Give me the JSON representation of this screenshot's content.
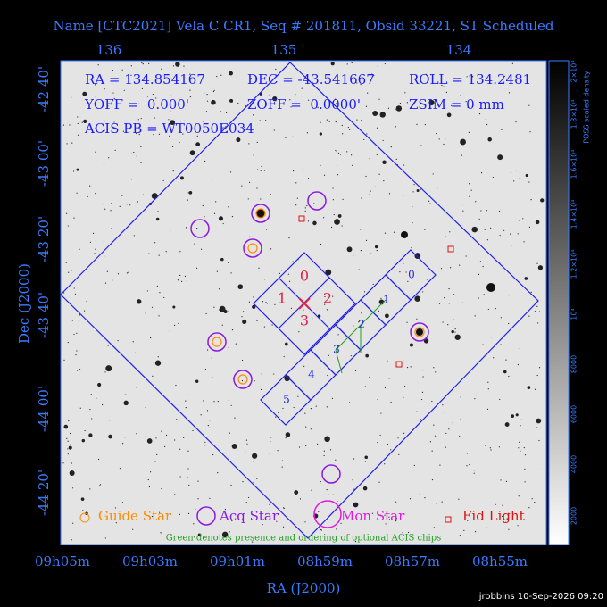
{
  "title": "Name [CTC2021] Vela C CR1, Seq # 201811, Obsid 33221, ST Scheduled",
  "top_axis": [
    "136",
    "135",
    "134"
  ],
  "left_axis": [
    "-42 40'",
    "-43 00'",
    "-43 20'",
    "-43 40'",
    "-44 00'",
    "-44 20'"
  ],
  "bottom_axis": [
    "09h05m",
    "09h03m",
    "09h01m",
    "08h59m",
    "08h57m",
    "08h55m"
  ],
  "x_label": "RA (J2000)",
  "y_label": "Dec (J2000)",
  "colorbar": {
    "title": "POSS scaled density",
    "labels": [
      "2000",
      "4000",
      "6000",
      "8000",
      "10⁴",
      "1.2×10⁴",
      "1.4×10⁴",
      "1.6×10⁴",
      "1.8×10⁴",
      "2×10⁴"
    ]
  },
  "info": [
    "RA = 134.854167",
    "DEC = -43.541667",
    "ROLL = 134.2481",
    "YOFF =  0.000'",
    "ZOFF =  0.0000'",
    "ZSIM = 0 mm",
    "ACIS PB = WT0050E034"
  ],
  "acis_i": [
    "0",
    "1",
    "2",
    "3"
  ],
  "acis_s": [
    "0",
    "1",
    "2",
    "3",
    "4",
    "5"
  ],
  "legend": [
    "Guide Star",
    "Acq Star",
    "Mon Star",
    "Fid Light"
  ],
  "note": "Green denotes presence and ordering of optional ACIS chips",
  "footer": "jrobbins 10-Sep-2026 09:20"
}
